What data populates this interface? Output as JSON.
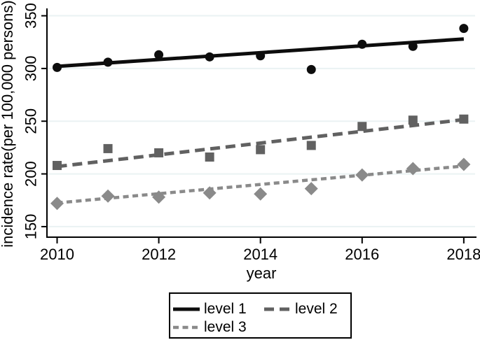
{
  "figure": {
    "background": "#ffffff",
    "text_color": "#000000"
  },
  "chart_data": {
    "type": "scatter",
    "subtype": "scatter-with-linear-fit",
    "title": "",
    "xlabel": "year",
    "ylabel": "incidence rate(per 100,000 persons)",
    "x": [
      2010,
      2011,
      2012,
      2013,
      2014,
      2015,
      2016,
      2017,
      2018
    ],
    "xticks": [
      2010,
      2012,
      2014,
      2016,
      2018
    ],
    "yticks": [
      150,
      200,
      250,
      300,
      350
    ],
    "xlim": [
      2009.8,
      2018.25
    ],
    "ylim": [
      140,
      357
    ],
    "grid": "horizontal",
    "gridline_color": "#eaf2f3",
    "axis_color": "#000000",
    "legend_position": "bottom",
    "series": [
      {
        "name": "level 1",
        "color": "#0d0d0d",
        "marker": "circle",
        "line_style": "solid",
        "values": [
          301,
          306,
          313,
          311,
          312,
          299,
          323,
          321,
          338
        ],
        "trend": {
          "start": 302,
          "end": 328
        }
      },
      {
        "name": "level 2",
        "color": "#616161",
        "marker": "square",
        "line_style": "long-dash",
        "values": [
          208,
          224,
          220,
          216,
          223,
          227,
          245,
          251,
          252
        ],
        "trend": {
          "start": 207,
          "end": 251.5
        }
      },
      {
        "name": "level 3",
        "color": "#8a8a8a",
        "marker": "diamond",
        "line_style": "short-dash",
        "values": [
          172,
          179,
          178,
          182,
          181,
          186,
          199,
          205,
          209
        ],
        "trend": {
          "start": 172.5,
          "end": 207.5
        }
      }
    ]
  }
}
